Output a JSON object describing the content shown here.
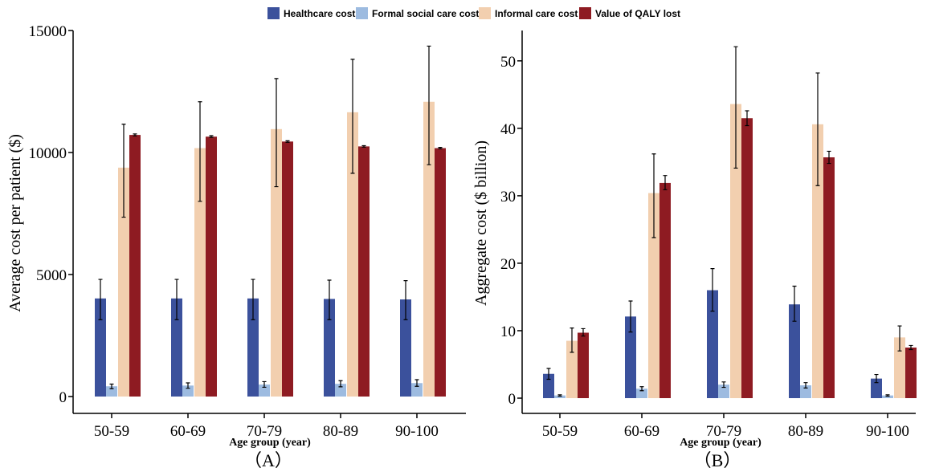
{
  "legend": [
    {
      "name": "Healthcare cost",
      "color": "#3b519c"
    },
    {
      "name": "Formal social care cost",
      "color": "#9dbbe0"
    },
    {
      "name": "Informal care cost",
      "color": "#f2cfaf"
    },
    {
      "name": "Value of QALY lost",
      "color": "#8e1b22"
    }
  ],
  "chart_data": [
    {
      "type": "bar",
      "panel_label": "（A）",
      "xlabel": "Age group (year)",
      "ylabel": "Average cost per patient ($)",
      "ylim": [
        0,
        15000
      ],
      "yticks": [
        0,
        5000,
        10000,
        15000
      ],
      "categories": [
        "50-59",
        "60-69",
        "70-79",
        "80-89",
        "90-100"
      ],
      "series": [
        {
          "name": "Healthcare cost",
          "values": [
            4020,
            4020,
            4020,
            4000,
            3980
          ],
          "err_low": [
            3150,
            3150,
            3150,
            3150,
            3150
          ],
          "err_high": [
            4800,
            4800,
            4800,
            4770,
            4750
          ]
        },
        {
          "name": "Formal social care cost",
          "values": [
            420,
            450,
            490,
            520,
            550
          ],
          "err_low": [
            320,
            340,
            380,
            400,
            420
          ],
          "err_high": [
            510,
            560,
            610,
            650,
            690
          ]
        },
        {
          "name": "Informal care cost",
          "values": [
            9380,
            10180,
            10960,
            11650,
            12080
          ],
          "err_low": [
            7350,
            8000,
            8600,
            9150,
            9500
          ],
          "err_high": [
            11160,
            12080,
            13030,
            13820,
            14360
          ]
        },
        {
          "name": "Value of QALY lost",
          "values": [
            10720,
            10650,
            10450,
            10250,
            10180
          ],
          "err_low": [
            10680,
            10620,
            10420,
            10220,
            10150
          ],
          "err_high": [
            10760,
            10690,
            10480,
            10280,
            10210
          ]
        }
      ]
    },
    {
      "type": "bar",
      "panel_label": "（B）",
      "xlabel": "Age group (year)",
      "ylabel": "Aggregate cost ($ billion)",
      "ylim": [
        0,
        54.5
      ],
      "yticks": [
        0,
        10,
        20,
        30,
        40,
        50
      ],
      "categories": [
        "50-59",
        "60-69",
        "70-79",
        "80-89",
        "90-100"
      ],
      "series": [
        {
          "name": "Healthcare cost",
          "values": [
            3.6,
            12.1,
            16.0,
            13.9,
            2.9
          ],
          "err_low": [
            2.8,
            9.8,
            12.9,
            11.4,
            2.3
          ],
          "err_high": [
            4.4,
            14.4,
            19.2,
            16.6,
            3.5
          ]
        },
        {
          "name": "Formal social care cost",
          "values": [
            0.4,
            1.4,
            2.0,
            1.9,
            0.4
          ],
          "err_low": [
            0.3,
            1.1,
            1.6,
            1.5,
            0.3
          ],
          "err_high": [
            0.5,
            1.7,
            2.4,
            2.3,
            0.5
          ]
        },
        {
          "name": "Informal care cost",
          "values": [
            8.5,
            30.4,
            43.6,
            40.6,
            9.0
          ],
          "err_low": [
            6.8,
            23.8,
            34.1,
            31.5,
            7.0
          ],
          "err_high": [
            10.4,
            36.2,
            52.1,
            48.2,
            10.7
          ]
        },
        {
          "name": "Value of QALY lost",
          "values": [
            9.7,
            31.9,
            41.5,
            35.7,
            7.5
          ],
          "err_low": [
            9.2,
            30.9,
            40.4,
            34.8,
            7.2
          ],
          "err_high": [
            10.3,
            33.0,
            42.6,
            36.6,
            7.8
          ]
        }
      ]
    }
  ]
}
